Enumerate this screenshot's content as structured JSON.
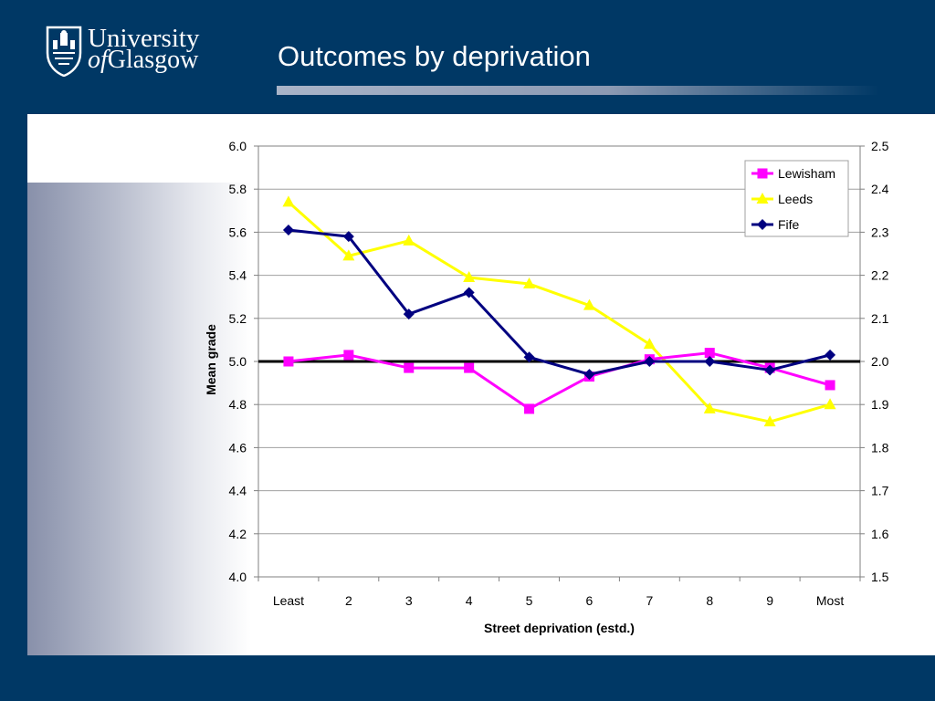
{
  "header": {
    "logo_line1": "University",
    "logo_line2_of": "of",
    "logo_line2_rest": "Glasgow",
    "title": "Outcomes by deprivation"
  },
  "colors": {
    "background": "#003865",
    "lewisham": "#FF00FF",
    "leeds": "#FFFF00",
    "fife": "#000080"
  },
  "icons": [
    "university-crest-icon"
  ],
  "chart_data": {
    "type": "line",
    "title": "",
    "xlabel": "Street deprivation (estd.)",
    "ylabel": "Mean grade",
    "categories": [
      "Least",
      "2",
      "3",
      "4",
      "5",
      "6",
      "7",
      "8",
      "9",
      "Most"
    ],
    "ylim": [
      4.0,
      6.0
    ],
    "yticks": [
      "4.0",
      "4.2",
      "4.4",
      "4.6",
      "4.8",
      "5.0",
      "5.2",
      "5.4",
      "5.6",
      "5.8",
      "6.0"
    ],
    "y2lim": [
      1.5,
      2.5
    ],
    "y2ticks": [
      "1.5",
      "1.6",
      "1.7",
      "1.8",
      "1.9",
      "2.0",
      "2.1",
      "2.2",
      "2.3",
      "2.4",
      "2.5"
    ],
    "reference_line": 5.0,
    "grid": true,
    "legend_position": "top-right",
    "series": [
      {
        "name": "Lewisham",
        "marker": "square",
        "color": "#FF00FF",
        "values": [
          5.0,
          5.03,
          4.97,
          4.97,
          4.78,
          4.93,
          5.01,
          5.04,
          4.97,
          4.89
        ]
      },
      {
        "name": "Leeds",
        "marker": "triangle",
        "color": "#FFFF00",
        "values": [
          5.74,
          5.49,
          5.56,
          5.39,
          5.36,
          5.26,
          5.08,
          4.78,
          4.72,
          4.8
        ]
      },
      {
        "name": "Fife",
        "marker": "diamond",
        "color": "#000080",
        "values": [
          5.61,
          5.58,
          5.22,
          5.32,
          5.02,
          4.94,
          5.0,
          5.0,
          4.96,
          5.03
        ]
      }
    ]
  }
}
